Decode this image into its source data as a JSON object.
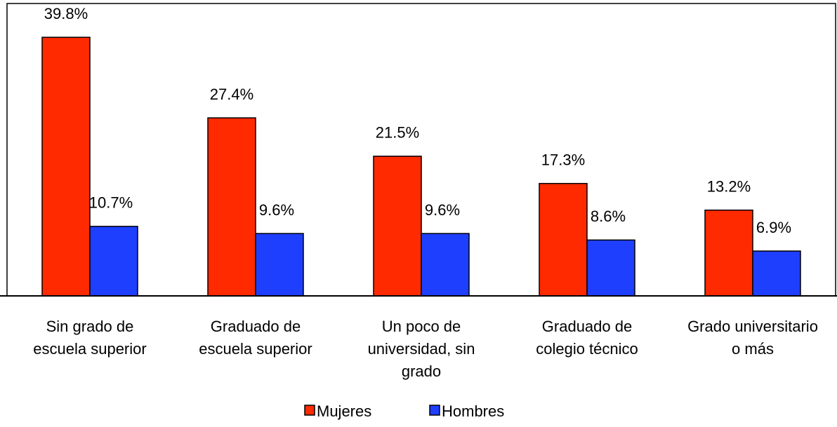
{
  "chart_data": {
    "type": "bar",
    "categories": [
      "Sin grado de escuela superior",
      "Graduado de escuela superior",
      "Un poco de universidad, sin grado",
      "Graduado de colegio técnico",
      "Grado universitario o más"
    ],
    "series": [
      {
        "name": "Mujeres",
        "color": "#ff2a00",
        "values": [
          39.8,
          27.4,
          21.5,
          17.3,
          13.2
        ],
        "value_labels": [
          "39.8%",
          "27.4%",
          "21.5%",
          "17.3%",
          "13.2%"
        ]
      },
      {
        "name": "Hombres",
        "color": "#1f3fff",
        "values": [
          10.7,
          9.6,
          9.6,
          8.6,
          6.9
        ],
        "value_labels": [
          "10.7%",
          "9.6%",
          "9.6%",
          "8.6%",
          "6.9%"
        ]
      }
    ],
    "ylim": [
      0,
      45
    ],
    "legend": "bottom"
  }
}
